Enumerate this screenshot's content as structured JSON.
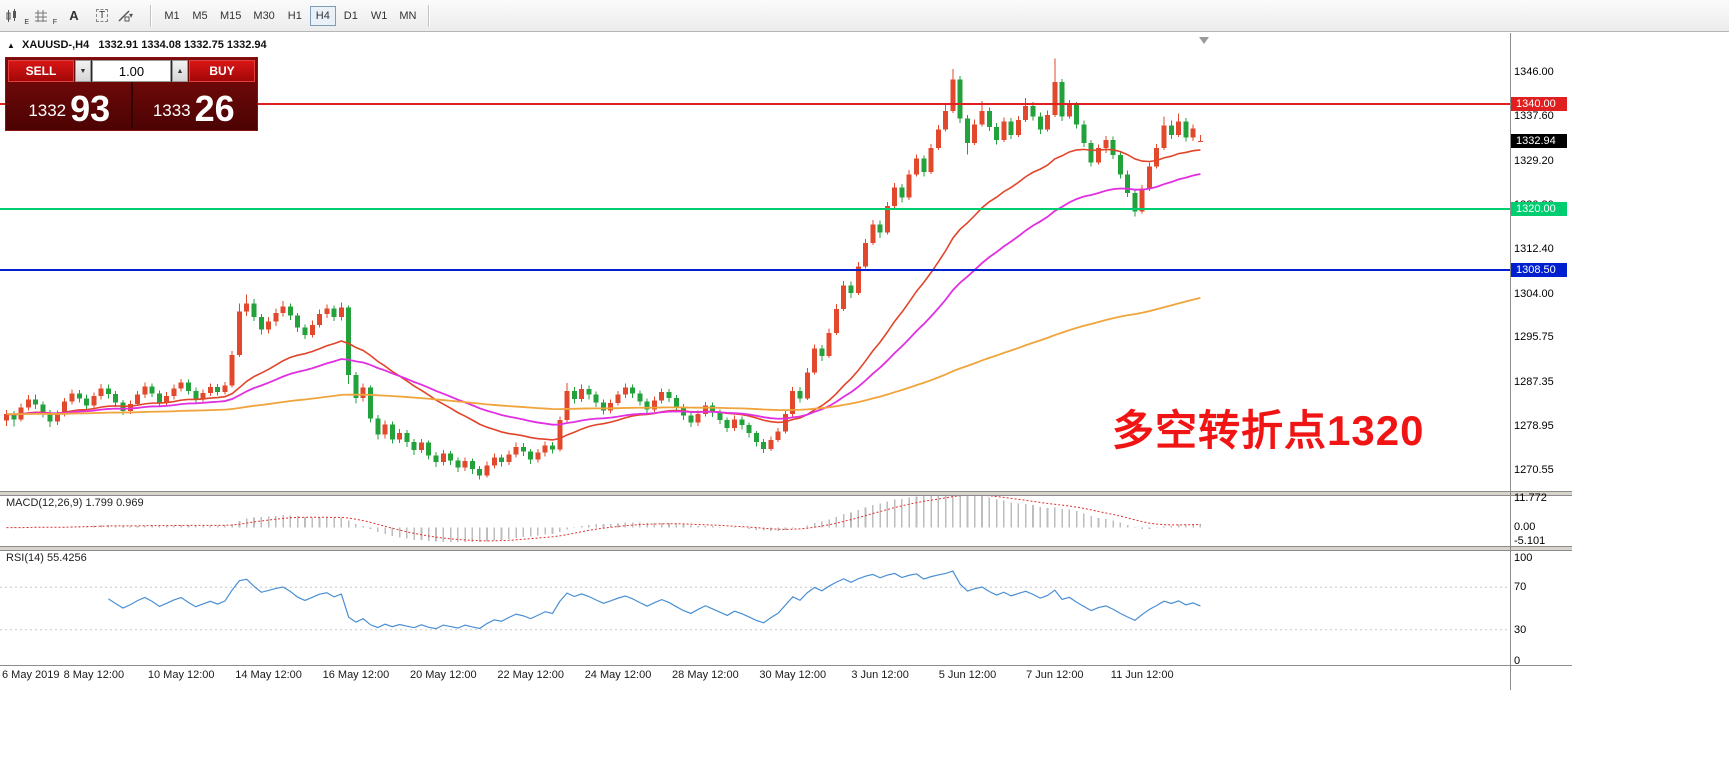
{
  "toolbar": {
    "tools": [
      {
        "name": "indicators",
        "badge": "E"
      },
      {
        "name": "grid",
        "badge": "F"
      },
      {
        "name": "text-label",
        "label": "A"
      },
      {
        "name": "text-box",
        "label": "T"
      },
      {
        "name": "draw-shapes",
        "caret": "▾"
      }
    ],
    "timeframes": [
      {
        "label": "M1",
        "active": false
      },
      {
        "label": "M5",
        "active": false
      },
      {
        "label": "M15",
        "active": false
      },
      {
        "label": "M30",
        "active": false
      },
      {
        "label": "H1",
        "active": false
      },
      {
        "label": "H4",
        "active": true
      },
      {
        "label": "D1",
        "active": false
      },
      {
        "label": "W1",
        "active": false
      },
      {
        "label": "MN",
        "active": false
      }
    ]
  },
  "symbol_header": {
    "symbol": "XAUUSD-,H4",
    "ohlc": "1332.91 1334.08 1332.75 1332.94"
  },
  "trade_panel": {
    "sell_label": "SELL",
    "buy_label": "BUY",
    "volume": "1.00",
    "spin_down": "▼",
    "spin_up": "▲",
    "bid": {
      "small": "1332",
      "big": "93"
    },
    "ask": {
      "small": "1333",
      "big": "26"
    }
  },
  "annotation": {
    "text": "多空转折点1320",
    "color": "#f01414"
  },
  "price_axis": [
    {
      "price": 1346.0,
      "text": "1346.00"
    },
    {
      "price": 1337.6,
      "text": "1337.60"
    },
    {
      "price": 1329.2,
      "text": "1329.20"
    },
    {
      "price": 1320.8,
      "text": "1320.80"
    },
    {
      "price": 1312.4,
      "text": "1312.40"
    },
    {
      "price": 1304.0,
      "text": "1304.00"
    },
    {
      "price": 1295.75,
      "text": "1295.75"
    },
    {
      "price": 1287.35,
      "text": "1287.35"
    },
    {
      "price": 1278.95,
      "text": "1278.95"
    },
    {
      "price": 1270.55,
      "text": "1270.55"
    }
  ],
  "current_price_badge": {
    "price": 1332.94,
    "text": "1332.94",
    "bg": "#000000",
    "fg": "#ffffff"
  },
  "macd_panel": {
    "title": "MACD(12,26,9)",
    "values": "1.799 0.969",
    "axis": [
      {
        "text": "11.772"
      },
      {
        "text": "0.00"
      },
      {
        "text": "-5.101"
      }
    ]
  },
  "rsi_panel": {
    "title": "RSI(14)",
    "value": "55.4256",
    "axis": [
      {
        "text": "100"
      },
      {
        "text": "70"
      },
      {
        "text": "30"
      },
      {
        "text": "0"
      }
    ]
  },
  "chart_data": {
    "type": "candlestick",
    "symbol": "XAUUSD-",
    "timeframe": "H4",
    "title": "XAUUSD-,H4",
    "last_bar": {
      "open": 1332.91,
      "high": 1334.08,
      "low": 1332.75,
      "close": 1332.94
    },
    "ylim": [
      1266.8,
      1353.4
    ],
    "x_label_stride": 12,
    "x_labels": [
      "6 May 2019",
      "8 May 12:00",
      "10 May 12:00",
      "14 May 12:00",
      "16 May 12:00",
      "20 May 12:00",
      "22 May 12:00",
      "24 May 12:00",
      "28 May 12:00",
      "30 May 12:00",
      "3 Jun 12:00",
      "5 Jun 12:00",
      "7 Jun 12:00",
      "11 Jun 12:00"
    ],
    "colors": {
      "up": "#e2492c",
      "down": "#23a23c",
      "ma_fast": "#e2442a",
      "ma_mid": "#e12fe1",
      "ma_slow": "#f0a43c",
      "macd_hist": "#bdbdbd",
      "macd_signal": "#e03030",
      "rsi": "#4a8fd4",
      "hline_red": "#e02020",
      "hline_green": "#00cd70",
      "hline_blue": "#0020d0"
    },
    "hlines": [
      {
        "price": 1340.0,
        "text": "1340.00",
        "color": "#e02020"
      },
      {
        "price": 1320.0,
        "text": "1320.00",
        "color": "#00cd70"
      },
      {
        "price": 1308.5,
        "text": "1308.50",
        "color": "#0020d0"
      }
    ],
    "overlays": [
      {
        "name": "ma-fast",
        "type": "ema",
        "period": 26,
        "key": "ma_fast",
        "width": 1.6
      },
      {
        "name": "ma-mid",
        "type": "ema",
        "period": 45,
        "key": "ma_mid",
        "width": 1.8
      },
      {
        "name": "ma-slow",
        "type": "ema",
        "period": 180,
        "key": "ma_slow",
        "width": 1.8
      }
    ],
    "indicators": [
      {
        "name": "MACD",
        "params": [
          12,
          26,
          9
        ],
        "current": [
          1.799,
          0.969
        ],
        "range": [
          -5.101,
          11.772
        ]
      },
      {
        "name": "RSI",
        "params": [
          14
        ],
        "current": 55.4256,
        "range": [
          0,
          100
        ],
        "levels": [
          70,
          30
        ]
      }
    ],
    "candles": [
      [
        1280.0,
        1282.0,
        1279.0,
        1281.2
      ],
      [
        1281.2,
        1281.8,
        1278.9,
        1280.2
      ],
      [
        1280.2,
        1283.2,
        1279.8,
        1282.5
      ],
      [
        1282.5,
        1284.8,
        1281.9,
        1284.0
      ],
      [
        1284.0,
        1284.9,
        1282.2,
        1283.0
      ],
      [
        1283.0,
        1283.6,
        1280.6,
        1281.4
      ],
      [
        1281.4,
        1282.0,
        1278.8,
        1279.8
      ],
      [
        1279.8,
        1281.9,
        1279.1,
        1281.2
      ],
      [
        1281.2,
        1284.3,
        1280.8,
        1283.6
      ],
      [
        1283.6,
        1285.9,
        1283.0,
        1285.1
      ],
      [
        1285.1,
        1285.8,
        1283.4,
        1284.2
      ],
      [
        1284.2,
        1284.9,
        1282.0,
        1282.8
      ],
      [
        1282.8,
        1285.3,
        1282.2,
        1284.6
      ],
      [
        1284.6,
        1286.9,
        1284.0,
        1286.1
      ],
      [
        1286.1,
        1286.8,
        1284.2,
        1285.0
      ],
      [
        1285.0,
        1285.6,
        1282.6,
        1283.4
      ],
      [
        1283.4,
        1283.9,
        1281.0,
        1281.8
      ],
      [
        1281.8,
        1283.8,
        1281.2,
        1283.1
      ],
      [
        1283.1,
        1285.6,
        1282.7,
        1284.9
      ],
      [
        1284.9,
        1287.2,
        1284.3,
        1286.4
      ],
      [
        1286.4,
        1287.0,
        1284.4,
        1285.1
      ],
      [
        1285.1,
        1285.7,
        1282.6,
        1283.3
      ],
      [
        1283.3,
        1285.4,
        1282.8,
        1284.6
      ],
      [
        1284.6,
        1286.8,
        1284.0,
        1286.1
      ],
      [
        1286.1,
        1287.9,
        1285.5,
        1287.2
      ],
      [
        1287.2,
        1287.8,
        1284.9,
        1285.6
      ],
      [
        1285.6,
        1286.2,
        1283.4,
        1284.1
      ],
      [
        1284.1,
        1285.9,
        1283.5,
        1285.2
      ],
      [
        1285.2,
        1287.0,
        1284.6,
        1286.3
      ],
      [
        1286.3,
        1286.9,
        1284.7,
        1285.4
      ],
      [
        1285.4,
        1287.3,
        1284.9,
        1286.6
      ],
      [
        1286.6,
        1293.2,
        1286.2,
        1292.4
      ],
      [
        1292.4,
        1302.2,
        1292.0,
        1300.6
      ],
      [
        1300.6,
        1303.9,
        1299.8,
        1302.2
      ],
      [
        1302.2,
        1303.0,
        1298.8,
        1299.6
      ],
      [
        1299.6,
        1300.2,
        1296.3,
        1297.2
      ],
      [
        1297.2,
        1299.6,
        1296.5,
        1298.7
      ],
      [
        1298.7,
        1301.2,
        1297.9,
        1300.4
      ],
      [
        1300.4,
        1302.6,
        1299.7,
        1301.6
      ],
      [
        1301.6,
        1302.2,
        1299.0,
        1299.9
      ],
      [
        1299.9,
        1300.4,
        1296.8,
        1297.6
      ],
      [
        1297.6,
        1298.2,
        1295.4,
        1296.2
      ],
      [
        1296.2,
        1298.9,
        1295.7,
        1298.1
      ],
      [
        1298.1,
        1301.0,
        1297.6,
        1300.2
      ],
      [
        1300.2,
        1302.0,
        1299.4,
        1301.2
      ],
      [
        1301.2,
        1301.8,
        1298.8,
        1299.6
      ],
      [
        1299.6,
        1302.3,
        1298.9,
        1301.4
      ],
      [
        1301.4,
        1301.8,
        1286.9,
        1288.6
      ],
      [
        1288.6,
        1289.2,
        1283.2,
        1284.3
      ],
      [
        1284.3,
        1287.0,
        1283.6,
        1286.2
      ],
      [
        1286.2,
        1286.6,
        1279.6,
        1280.4
      ],
      [
        1280.4,
        1281.0,
        1276.4,
        1277.3
      ],
      [
        1277.3,
        1280.0,
        1276.6,
        1279.2
      ],
      [
        1279.2,
        1279.8,
        1275.6,
        1276.4
      ],
      [
        1276.4,
        1278.4,
        1275.7,
        1277.6
      ],
      [
        1277.6,
        1278.2,
        1275.0,
        1275.9
      ],
      [
        1275.9,
        1276.5,
        1273.5,
        1274.4
      ],
      [
        1274.4,
        1276.5,
        1273.8,
        1275.8
      ],
      [
        1275.8,
        1276.2,
        1272.6,
        1273.4
      ],
      [
        1273.4,
        1274.0,
        1271.2,
        1272.1
      ],
      [
        1272.1,
        1274.4,
        1271.5,
        1273.7
      ],
      [
        1273.7,
        1274.2,
        1271.6,
        1272.4
      ],
      [
        1272.4,
        1273.0,
        1270.2,
        1271.1
      ],
      [
        1271.1,
        1273.0,
        1270.4,
        1272.3
      ],
      [
        1272.3,
        1272.8,
        1269.9,
        1270.8
      ],
      [
        1270.8,
        1271.4,
        1268.8,
        1269.6
      ],
      [
        1269.6,
        1272.2,
        1269.2,
        1271.5
      ],
      [
        1271.5,
        1273.7,
        1270.9,
        1273.0
      ],
      [
        1273.0,
        1273.6,
        1271.3,
        1272.1
      ],
      [
        1272.1,
        1274.3,
        1271.6,
        1273.6
      ],
      [
        1273.6,
        1275.8,
        1273.0,
        1275.0
      ],
      [
        1275.0,
        1275.7,
        1273.3,
        1274.1
      ],
      [
        1274.1,
        1274.6,
        1271.8,
        1272.6
      ],
      [
        1272.6,
        1274.6,
        1272.0,
        1273.9
      ],
      [
        1273.9,
        1276.0,
        1273.2,
        1275.3
      ],
      [
        1275.3,
        1275.9,
        1273.7,
        1274.5
      ],
      [
        1274.5,
        1280.8,
        1274.1,
        1280.1
      ],
      [
        1280.1,
        1287.1,
        1279.7,
        1285.6
      ],
      [
        1285.6,
        1286.3,
        1283.2,
        1284.1
      ],
      [
        1284.1,
        1286.8,
        1283.5,
        1286.0
      ],
      [
        1286.0,
        1286.6,
        1284.0,
        1284.9
      ],
      [
        1284.9,
        1285.5,
        1282.6,
        1283.4
      ],
      [
        1283.4,
        1284.0,
        1281.1,
        1281.9
      ],
      [
        1281.9,
        1284.0,
        1281.3,
        1283.3
      ],
      [
        1283.3,
        1285.6,
        1282.8,
        1284.9
      ],
      [
        1284.9,
        1287.0,
        1284.3,
        1286.2
      ],
      [
        1286.2,
        1286.8,
        1284.3,
        1285.1
      ],
      [
        1285.1,
        1285.7,
        1282.8,
        1283.6
      ],
      [
        1283.6,
        1284.2,
        1281.3,
        1282.1
      ],
      [
        1282.1,
        1284.5,
        1281.6,
        1283.8
      ],
      [
        1283.8,
        1286.1,
        1283.2,
        1285.4
      ],
      [
        1285.4,
        1286.0,
        1283.5,
        1284.3
      ],
      [
        1284.3,
        1284.8,
        1281.8,
        1282.6
      ],
      [
        1282.6,
        1283.1,
        1280.1,
        1280.9
      ],
      [
        1280.9,
        1281.5,
        1278.8,
        1279.6
      ],
      [
        1279.6,
        1281.9,
        1279.0,
        1281.2
      ],
      [
        1281.2,
        1283.5,
        1280.8,
        1282.8
      ],
      [
        1282.8,
        1283.4,
        1280.7,
        1281.5
      ],
      [
        1281.5,
        1282.1,
        1279.3,
        1280.1
      ],
      [
        1280.1,
        1280.6,
        1277.8,
        1278.6
      ],
      [
        1278.6,
        1280.9,
        1278.0,
        1280.2
      ],
      [
        1280.2,
        1280.8,
        1278.3,
        1279.1
      ],
      [
        1279.1,
        1279.6,
        1276.8,
        1277.6
      ],
      [
        1277.6,
        1278.0,
        1275.1,
        1275.9
      ],
      [
        1275.9,
        1276.5,
        1273.8,
        1274.6
      ],
      [
        1274.6,
        1277.0,
        1274.2,
        1276.3
      ],
      [
        1276.3,
        1278.6,
        1275.9,
        1277.9
      ],
      [
        1277.9,
        1281.9,
        1277.5,
        1281.2
      ],
      [
        1281.2,
        1286.3,
        1280.8,
        1285.6
      ],
      [
        1285.6,
        1286.3,
        1283.4,
        1284.2
      ],
      [
        1284.2,
        1289.9,
        1283.9,
        1289.1
      ],
      [
        1289.1,
        1294.4,
        1288.7,
        1293.6
      ],
      [
        1293.6,
        1294.3,
        1291.3,
        1292.2
      ],
      [
        1292.2,
        1297.4,
        1291.8,
        1296.6
      ],
      [
        1296.6,
        1302.1,
        1296.2,
        1301.1
      ],
      [
        1301.1,
        1306.4,
        1300.7,
        1305.6
      ],
      [
        1305.6,
        1306.3,
        1303.2,
        1304.1
      ],
      [
        1304.1,
        1310.0,
        1303.8,
        1309.2
      ],
      [
        1309.2,
        1314.4,
        1308.8,
        1313.6
      ],
      [
        1313.6,
        1318.0,
        1313.2,
        1317.1
      ],
      [
        1317.1,
        1317.9,
        1314.6,
        1315.6
      ],
      [
        1315.6,
        1321.4,
        1315.2,
        1320.6
      ],
      [
        1320.6,
        1325.0,
        1320.2,
        1324.1
      ],
      [
        1324.1,
        1324.8,
        1321.3,
        1322.2
      ],
      [
        1322.2,
        1327.4,
        1321.8,
        1326.6
      ],
      [
        1326.6,
        1330.4,
        1326.2,
        1329.6
      ],
      [
        1329.6,
        1330.2,
        1326.2,
        1327.1
      ],
      [
        1327.1,
        1332.4,
        1326.7,
        1331.6
      ],
      [
        1331.6,
        1336.0,
        1331.2,
        1335.1
      ],
      [
        1335.1,
        1340.1,
        1334.7,
        1338.6
      ],
      [
        1338.6,
        1346.6,
        1338.2,
        1344.6
      ],
      [
        1344.6,
        1345.2,
        1336.3,
        1337.2
      ],
      [
        1337.2,
        1337.9,
        1330.4,
        1332.6
      ],
      [
        1332.6,
        1337.0,
        1332.2,
        1336.1
      ],
      [
        1336.1,
        1340.5,
        1335.7,
        1338.6
      ],
      [
        1338.6,
        1339.3,
        1334.8,
        1335.6
      ],
      [
        1335.6,
        1336.3,
        1332.3,
        1333.1
      ],
      [
        1333.1,
        1337.4,
        1332.7,
        1336.6
      ],
      [
        1336.6,
        1337.3,
        1333.3,
        1334.1
      ],
      [
        1334.1,
        1337.7,
        1333.7,
        1336.9
      ],
      [
        1336.9,
        1341.1,
        1336.5,
        1339.6
      ],
      [
        1339.6,
        1340.3,
        1336.8,
        1337.6
      ],
      [
        1337.6,
        1338.3,
        1334.3,
        1335.1
      ],
      [
        1335.1,
        1338.7,
        1334.7,
        1337.9
      ],
      [
        1337.9,
        1348.6,
        1337.5,
        1344.1
      ],
      [
        1344.1,
        1344.7,
        1336.7,
        1337.6
      ],
      [
        1337.6,
        1340.7,
        1337.2,
        1339.9
      ],
      [
        1339.9,
        1340.3,
        1335.3,
        1336.1
      ],
      [
        1336.1,
        1336.8,
        1331.8,
        1332.6
      ],
      [
        1332.6,
        1333.1,
        1328.1,
        1328.9
      ],
      [
        1328.9,
        1332.3,
        1328.5,
        1331.6
      ],
      [
        1331.6,
        1333.9,
        1330.7,
        1333.1
      ],
      [
        1333.1,
        1333.8,
        1329.5,
        1330.3
      ],
      [
        1330.3,
        1330.8,
        1325.8,
        1326.6
      ],
      [
        1326.6,
        1327.3,
        1322.3,
        1323.1
      ],
      [
        1323.1,
        1323.7,
        1318.6,
        1319.6
      ],
      [
        1319.6,
        1324.6,
        1319.2,
        1323.9
      ],
      [
        1323.9,
        1328.9,
        1323.5,
        1328.1
      ],
      [
        1328.1,
        1332.4,
        1327.7,
        1331.6
      ],
      [
        1331.6,
        1337.6,
        1331.2,
        1335.9
      ],
      [
        1335.9,
        1336.8,
        1333.3,
        1334.1
      ],
      [
        1334.1,
        1338.1,
        1333.7,
        1336.6
      ],
      [
        1336.6,
        1337.3,
        1332.8,
        1333.6
      ],
      [
        1333.6,
        1336.1,
        1332.9,
        1335.3
      ],
      [
        1332.91,
        1334.08,
        1332.75,
        1332.94
      ]
    ]
  }
}
